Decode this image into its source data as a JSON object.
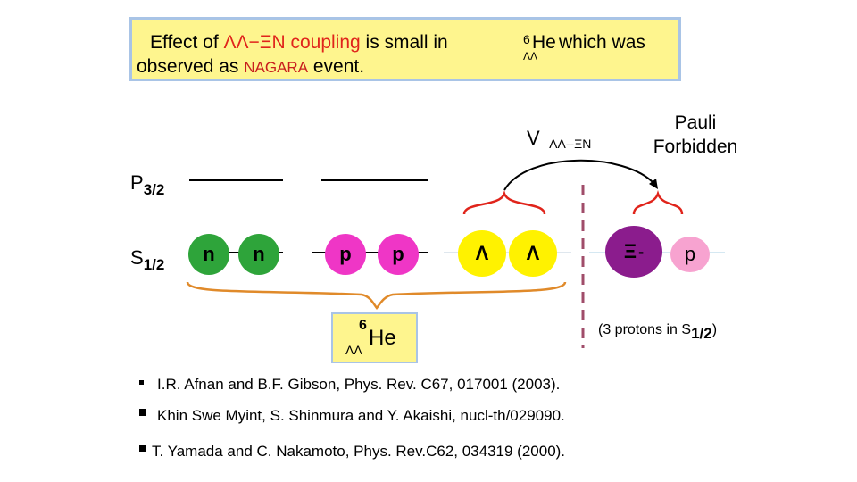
{
  "header": {
    "line1_prefix": "Effect of ",
    "line1_coupling": "ΛΛ−ΞN coupling",
    "line1_middle": " is small in  ",
    "he_mass": "6",
    "he_sub": "ΛΛ",
    "he_symbol": "He",
    "line1_suffix": " which was",
    "line2_prefix": "observed as ",
    "line2_event": "NAGARA",
    "line2_suffix": " event."
  },
  "potential": {
    "v": "V",
    "sub": "ΛΛ--ΞN"
  },
  "pauli": {
    "line1": "Pauli",
    "line2": "Forbidden"
  },
  "levels": {
    "p32": {
      "main": "P",
      "sub": "3/2"
    },
    "s12": {
      "main": "S",
      "sub": "1/2"
    }
  },
  "particles": [
    {
      "id": "n1",
      "label": "n"
    },
    {
      "id": "n2",
      "label": "n"
    },
    {
      "id": "p1",
      "label": "p"
    },
    {
      "id": "p2",
      "label": "p"
    },
    {
      "id": "lambda1",
      "label": "Λ"
    },
    {
      "id": "lambda2",
      "label": "Λ"
    },
    {
      "id": "xi",
      "label": "Ξ",
      "sup": "-"
    },
    {
      "id": "p3",
      "label": "p"
    }
  ],
  "he_box": {
    "mass": "6",
    "sub": "ΛΛ",
    "symbol": "He"
  },
  "protons_note": {
    "prefix": "(3 protons in S",
    "sub": "1/2",
    "suffix": ")"
  },
  "references": [
    "I.R. Afnan and B.F. Gibson, Phys. Rev. C67, 017001 (2003).",
    "Khin Swe Myint, S. Shinmura and Y. Akaishi, nucl-th/029090.",
    "T. Yamada and C. Nakamoto,  Phys. Rev.C62, 034319 (2000)."
  ],
  "colors": {
    "neutron": "#2ea43a",
    "proton": "#ef36c6",
    "lambda": "#fff200",
    "xi": "#8b1c8d",
    "proton_forbidden": "#f7a3d0",
    "brace_red": "#e0241b",
    "brace_orange": "#e08a2a",
    "divider": "#a04d6a"
  }
}
